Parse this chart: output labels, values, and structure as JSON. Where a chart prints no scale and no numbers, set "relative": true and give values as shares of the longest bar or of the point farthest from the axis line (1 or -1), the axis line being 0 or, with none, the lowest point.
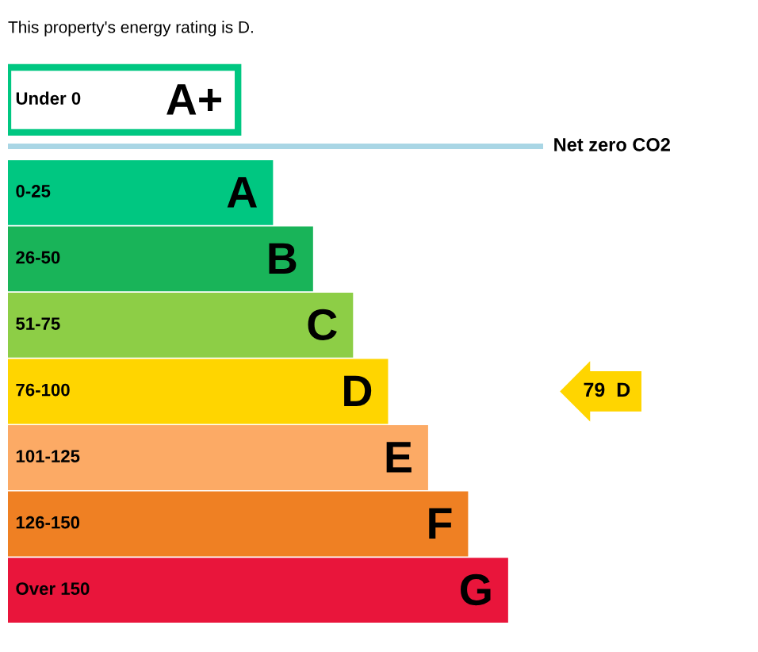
{
  "chart_data": {
    "type": "bar",
    "orientation": "horizontal",
    "relative": true,
    "title": "This property's energy rating is D.",
    "categories": [
      "Under 0",
      "0-25",
      "26-50",
      "51-75",
      "76-100",
      "101-125",
      "126-150",
      "Over 150"
    ],
    "values": [
      0.46,
      0.53,
      0.61,
      0.69,
      0.76,
      0.84,
      0.92,
      1.0
    ],
    "colors": [
      "#00c781",
      "#00c781",
      "#19b459",
      "#8dce46",
      "#ffd500",
      "#fcaa65",
      "#ef8023",
      "#e9153b"
    ],
    "ref_lines": [
      {
        "axis": "y",
        "value": "Under 0",
        "label": "Net zero CO2",
        "color": "#a9d6e5"
      }
    ],
    "annotations": [
      "A+",
      "A",
      "B",
      "C",
      "D",
      "E",
      "F",
      "G",
      "79  D"
    ]
  }
}
